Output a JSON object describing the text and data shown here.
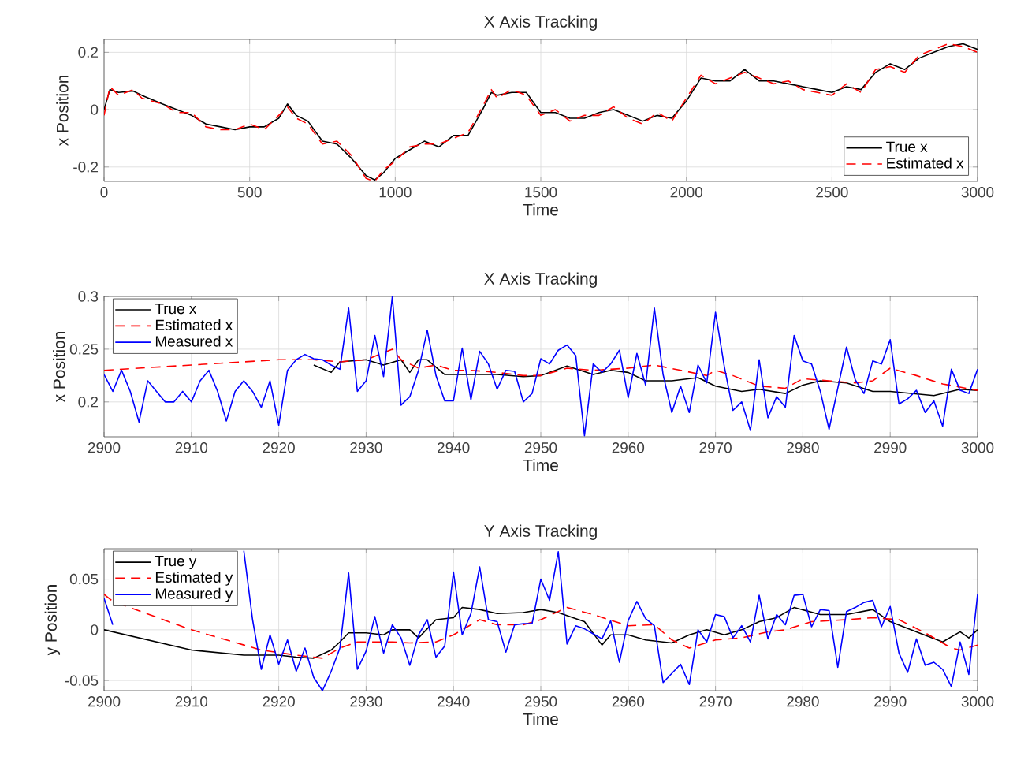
{
  "chart_data": [
    {
      "type": "line",
      "title": "X Axis Tracking",
      "xlabel": "Time",
      "ylabel": "x Position",
      "xlim": [
        0,
        3000
      ],
      "ylim": [
        -0.25,
        0.245
      ],
      "xticks": [
        0,
        500,
        1000,
        1500,
        2000,
        2500,
        3000
      ],
      "yticks": [
        -0.2,
        0,
        0.2
      ],
      "grid": true,
      "legend": "bottom right",
      "series": [
        {
          "name": "True x",
          "color": "#000000",
          "line_style": "solid",
          "x": [
            0,
            20,
            50,
            100,
            130,
            200,
            250,
            300,
            350,
            400,
            450,
            500,
            550,
            600,
            630,
            660,
            700,
            750,
            800,
            850,
            900,
            930,
            960,
            1000,
            1050,
            1100,
            1150,
            1200,
            1250,
            1300,
            1330,
            1350,
            1400,
            1450,
            1500,
            1550,
            1600,
            1650,
            1700,
            1750,
            1800,
            1850,
            1900,
            1950,
            2000,
            2050,
            2100,
            2150,
            2200,
            2250,
            2300,
            2350,
            2400,
            2450,
            2500,
            2550,
            2600,
            2650,
            2700,
            2750,
            2800,
            2850,
            2900,
            2950,
            3000
          ],
          "values": [
            0,
            0.07,
            0.06,
            0.065,
            0.05,
            0.02,
            0.0,
            -0.02,
            -0.05,
            -0.06,
            -0.07,
            -0.06,
            -0.06,
            -0.03,
            0.02,
            -0.02,
            -0.04,
            -0.11,
            -0.12,
            -0.17,
            -0.23,
            -0.245,
            -0.22,
            -0.17,
            -0.14,
            -0.11,
            -0.13,
            -0.09,
            -0.09,
            0.0,
            0.06,
            0.05,
            0.06,
            0.06,
            -0.01,
            -0.01,
            -0.03,
            -0.03,
            -0.01,
            0.0,
            -0.02,
            -0.04,
            -0.02,
            -0.03,
            0.03,
            0.11,
            0.1,
            0.1,
            0.14,
            0.1,
            0.1,
            0.09,
            0.08,
            0.07,
            0.06,
            0.08,
            0.07,
            0.13,
            0.16,
            0.14,
            0.18,
            0.2,
            0.22,
            0.23,
            0.21
          ]
        },
        {
          "name": "Estimated x",
          "color": "#ff0000",
          "line_style": "dashed",
          "x": [
            0,
            20,
            50,
            100,
            130,
            200,
            250,
            300,
            350,
            400,
            450,
            500,
            550,
            600,
            630,
            660,
            700,
            750,
            800,
            850,
            900,
            930,
            960,
            1000,
            1050,
            1100,
            1150,
            1200,
            1250,
            1300,
            1330,
            1350,
            1400,
            1450,
            1500,
            1550,
            1600,
            1650,
            1700,
            1750,
            1800,
            1850,
            1900,
            1950,
            2000,
            2050,
            2100,
            2150,
            2200,
            2250,
            2300,
            2350,
            2400,
            2450,
            2500,
            2550,
            2600,
            2650,
            2700,
            2750,
            2800,
            2850,
            2900,
            2950,
            3000
          ],
          "values": [
            -0.02,
            0.08,
            0.05,
            0.07,
            0.04,
            0.02,
            -0.01,
            -0.01,
            -0.06,
            -0.07,
            -0.07,
            -0.05,
            -0.07,
            -0.02,
            0.01,
            -0.03,
            -0.05,
            -0.12,
            -0.11,
            -0.16,
            -0.24,
            -0.25,
            -0.21,
            -0.18,
            -0.13,
            -0.12,
            -0.12,
            -0.1,
            -0.08,
            0.01,
            0.07,
            0.04,
            0.07,
            0.05,
            -0.02,
            0.0,
            -0.04,
            -0.02,
            -0.02,
            0.01,
            -0.03,
            -0.05,
            -0.01,
            -0.04,
            0.04,
            0.12,
            0.09,
            0.11,
            0.13,
            0.11,
            0.09,
            0.1,
            0.07,
            0.06,
            0.05,
            0.09,
            0.06,
            0.14,
            0.15,
            0.13,
            0.19,
            0.21,
            0.23,
            0.22,
            0.2
          ]
        }
      ]
    },
    {
      "type": "line",
      "title": "X Axis Tracking",
      "xlabel": "Time",
      "ylabel": "x Position",
      "xlim": [
        2900,
        3000
      ],
      "ylim": [
        0.167,
        0.3
      ],
      "xticks": [
        2900,
        2910,
        2920,
        2930,
        2940,
        2950,
        2960,
        2970,
        2980,
        2990,
        3000
      ],
      "yticks": [
        0.2,
        0.25,
        0.3
      ],
      "grid": true,
      "legend": "top left",
      "series": [
        {
          "name": "True x",
          "color": "#000000",
          "line_style": "solid",
          "x": [
            2924,
            2926,
            2927,
            2930,
            2932,
            2934,
            2935,
            2936,
            2937,
            2939,
            2940,
            2945,
            2948,
            2950,
            2953,
            2956,
            2958,
            2960,
            2962,
            2965,
            2968,
            2970,
            2973,
            2975,
            2978,
            2980,
            2982,
            2985,
            2988,
            2990,
            2995,
            2998,
            3000
          ],
          "values": [
            0.235,
            0.228,
            0.238,
            0.24,
            0.235,
            0.24,
            0.228,
            0.24,
            0.24,
            0.226,
            0.226,
            0.226,
            0.224,
            0.225,
            0.234,
            0.226,
            0.23,
            0.228,
            0.22,
            0.22,
            0.223,
            0.215,
            0.21,
            0.212,
            0.208,
            0.216,
            0.22,
            0.218,
            0.21,
            0.21,
            0.206,
            0.212,
            0.211
          ]
        },
        {
          "name": "Estimated x",
          "color": "#ff0000",
          "line_style": "dashed",
          "x": [
            2900,
            2910,
            2920,
            2924,
            2927,
            2930,
            2933,
            2934,
            2936,
            2938,
            2940,
            2942,
            2945,
            2948,
            2950,
            2953,
            2956,
            2960,
            2963,
            2966,
            2969,
            2970,
            2972,
            2975,
            2978,
            2980,
            2983,
            2986,
            2988,
            2990,
            2993,
            2996,
            3000
          ],
          "values": [
            0.23,
            0.235,
            0.24,
            0.24,
            0.238,
            0.24,
            0.25,
            0.24,
            0.232,
            0.235,
            0.23,
            0.23,
            0.228,
            0.225,
            0.225,
            0.232,
            0.23,
            0.232,
            0.235,
            0.23,
            0.225,
            0.23,
            0.225,
            0.215,
            0.213,
            0.222,
            0.22,
            0.218,
            0.22,
            0.232,
            0.225,
            0.217,
            0.211
          ]
        },
        {
          "name": "Measured x",
          "color": "#0000ff",
          "line_style": "solid",
          "x": [
            2900,
            2901,
            2902,
            2903,
            2904,
            2905,
            2906,
            2907,
            2908,
            2909,
            2910,
            2911,
            2912,
            2913,
            2914,
            2915,
            2916,
            2917,
            2918,
            2919,
            2920,
            2921,
            2922,
            2923,
            2924,
            2925,
            2926,
            2927,
            2928,
            2929,
            2930,
            2931,
            2932,
            2933,
            2934,
            2935,
            2936,
            2937,
            2938,
            2939,
            2940,
            2941,
            2942,
            2943,
            2944,
            2945,
            2946,
            2947,
            2948,
            2949,
            2950,
            2951,
            2952,
            2953,
            2954,
            2955,
            2956,
            2957,
            2958,
            2959,
            2960,
            2961,
            2962,
            2963,
            2964,
            2965,
            2966,
            2967,
            2968,
            2969,
            2970,
            2971,
            2972,
            2973,
            2974,
            2975,
            2976,
            2977,
            2978,
            2979,
            2980,
            2981,
            2982,
            2983,
            2984,
            2985,
            2986,
            2987,
            2988,
            2989,
            2990,
            2991,
            2992,
            2993,
            2994,
            2995,
            2996,
            2997,
            2998,
            2999,
            3000
          ],
          "values": [
            0.226,
            0.21,
            0.23,
            0.21,
            0.181,
            0.22,
            0.21,
            0.2,
            0.2,
            0.21,
            0.2,
            0.22,
            0.23,
            0.21,
            0.182,
            0.21,
            0.22,
            0.21,
            0.195,
            0.22,
            0.178,
            0.23,
            0.24,
            0.245,
            0.241,
            0.24,
            0.235,
            0.231,
            0.289,
            0.21,
            0.22,
            0.263,
            0.224,
            0.3,
            0.197,
            0.205,
            0.23,
            0.268,
            0.225,
            0.201,
            0.201,
            0.251,
            0.202,
            0.248,
            0.236,
            0.212,
            0.23,
            0.229,
            0.2,
            0.208,
            0.241,
            0.236,
            0.249,
            0.254,
            0.244,
            0.168,
            0.236,
            0.228,
            0.236,
            0.249,
            0.204,
            0.246,
            0.216,
            0.289,
            0.226,
            0.19,
            0.215,
            0.19,
            0.235,
            0.218,
            0.285,
            0.234,
            0.192,
            0.2,
            0.173,
            0.24,
            0.185,
            0.205,
            0.195,
            0.263,
            0.239,
            0.236,
            0.21,
            0.174,
            0.213,
            0.252,
            0.221,
            0.208,
            0.239,
            0.236,
            0.259,
            0.198,
            0.203,
            0.211,
            0.19,
            0.201,
            0.177,
            0.231,
            0.211,
            0.208,
            0.231
          ]
        }
      ]
    },
    {
      "type": "line",
      "title": "Y Axis Tracking",
      "xlabel": "Time",
      "ylabel": "y Position",
      "xlim": [
        2900,
        3000
      ],
      "ylim": [
        -0.06,
        0.08
      ],
      "xticks": [
        2900,
        2910,
        2920,
        2930,
        2940,
        2950,
        2960,
        2970,
        2980,
        2990,
        3000
      ],
      "yticks": [
        -0.05,
        0,
        0.05
      ],
      "grid": true,
      "legend": "top left",
      "series": [
        {
          "name": "True y",
          "color": "#000000",
          "line_style": "solid",
          "x": [
            2900,
            2910,
            2916,
            2918,
            2920,
            2922,
            2924,
            2926,
            2927,
            2928,
            2930,
            2932,
            2933,
            2935,
            2936,
            2938,
            2940,
            2941,
            2943,
            2945,
            2948,
            2950,
            2952,
            2955,
            2957,
            2958,
            2960,
            2962,
            2965,
            2967,
            2969,
            2971,
            2973,
            2975,
            2977,
            2979,
            2982,
            2985,
            2988,
            2990,
            2993,
            2996,
            2998,
            2999,
            3000
          ],
          "values": [
            0.0,
            -0.02,
            -0.025,
            -0.025,
            -0.025,
            -0.027,
            -0.028,
            -0.02,
            -0.012,
            -0.003,
            -0.003,
            -0.005,
            0.0,
            0.0,
            -0.008,
            0.01,
            0.012,
            0.022,
            0.02,
            0.016,
            0.017,
            0.02,
            0.017,
            0.008,
            -0.015,
            -0.005,
            -0.005,
            -0.01,
            -0.013,
            -0.005,
            0.0,
            -0.005,
            0.0,
            0.008,
            0.012,
            0.022,
            0.015,
            0.015,
            0.02,
            0.008,
            -0.002,
            -0.012,
            -0.002,
            -0.008,
            0.0
          ]
        },
        {
          "name": "Estimated y",
          "color": "#ff0000",
          "line_style": "dashed",
          "x": [
            2900,
            2901,
            2910,
            2918,
            2922,
            2925,
            2927,
            2929,
            2933,
            2935,
            2938,
            2940,
            2943,
            2945,
            2948,
            2950,
            2953,
            2956,
            2960,
            2963,
            2965,
            2967,
            2970,
            2973,
            2976,
            2978,
            2981,
            2985,
            2988,
            2991,
            2994,
            2997,
            2998,
            3000
          ],
          "values": [
            0.035,
            0.028,
            0.0,
            -0.02,
            -0.025,
            -0.028,
            -0.018,
            -0.012,
            -0.012,
            -0.013,
            -0.012,
            -0.005,
            0.01,
            0.005,
            0.005,
            0.01,
            0.022,
            0.015,
            0.004,
            0.005,
            -0.01,
            -0.018,
            -0.01,
            -0.008,
            -0.002,
            0.0,
            0.008,
            0.01,
            0.012,
            0.01,
            -0.003,
            -0.018,
            -0.02,
            -0.015
          ]
        },
        {
          "name": "Measured y",
          "color": "#0000ff",
          "line_style": "solid",
          "x": [
            2900,
            2901,
            2902,
            2903,
            2904,
            2905,
            2906,
            2907,
            2908,
            2909,
            2910,
            2911,
            2912,
            2913,
            2914,
            2915,
            2916,
            2917,
            2918,
            2919,
            2920,
            2921,
            2922,
            2923,
            2924,
            2925,
            2926,
            2927,
            2928,
            2929,
            2930,
            2931,
            2932,
            2933,
            2934,
            2935,
            2936,
            2937,
            2938,
            2939,
            2940,
            2941,
            2942,
            2943,
            2944,
            2945,
            2946,
            2947,
            2948,
            2949,
            2950,
            2951,
            2952,
            2953,
            2954,
            2955,
            2956,
            2957,
            2958,
            2959,
            2960,
            2961,
            2962,
            2963,
            2964,
            2965,
            2966,
            2967,
            2968,
            2969,
            2970,
            2971,
            2972,
            2973,
            2974,
            2975,
            2976,
            2977,
            2978,
            2979,
            2980,
            2981,
            2982,
            2983,
            2984,
            2985,
            2986,
            2987,
            2988,
            2989,
            2990,
            2991,
            2992,
            2993,
            2994,
            2995,
            2996,
            2997,
            2998,
            2999,
            3000
          ],
          "values": [
            0.031,
            0.005,
            null,
            null,
            null,
            null,
            null,
            null,
            null,
            null,
            null,
            null,
            null,
            null,
            null,
            null,
            0.078,
            0.01,
            -0.039,
            -0.005,
            -0.034,
            -0.01,
            -0.041,
            -0.018,
            -0.047,
            -0.06,
            -0.041,
            -0.018,
            0.056,
            -0.039,
            -0.021,
            0.013,
            -0.023,
            0.005,
            -0.008,
            -0.035,
            -0.005,
            0.01,
            -0.027,
            -0.016,
            0.057,
            -0.005,
            0.016,
            0.062,
            0.01,
            0.008,
            -0.022,
            0.005,
            0.006,
            0.006,
            0.05,
            0.029,
            0.077,
            -0.014,
            0.004,
            0.001,
            -0.004,
            -0.009,
            0.009,
            -0.032,
            0.009,
            0.028,
            0.011,
            0.004,
            -0.052,
            -0.043,
            -0.034,
            -0.054,
            0.0,
            -0.012,
            0.015,
            0.013,
            -0.008,
            0.004,
            -0.012,
            0.034,
            -0.009,
            0.015,
            0.005,
            0.034,
            0.035,
            0.003,
            0.02,
            0.019,
            -0.037,
            0.018,
            0.022,
            0.027,
            0.029,
            0.003,
            0.023,
            -0.023,
            -0.042,
            -0.009,
            -0.035,
            -0.032,
            -0.039,
            -0.056,
            -0.012,
            -0.044,
            0.035
          ]
        }
      ]
    }
  ]
}
